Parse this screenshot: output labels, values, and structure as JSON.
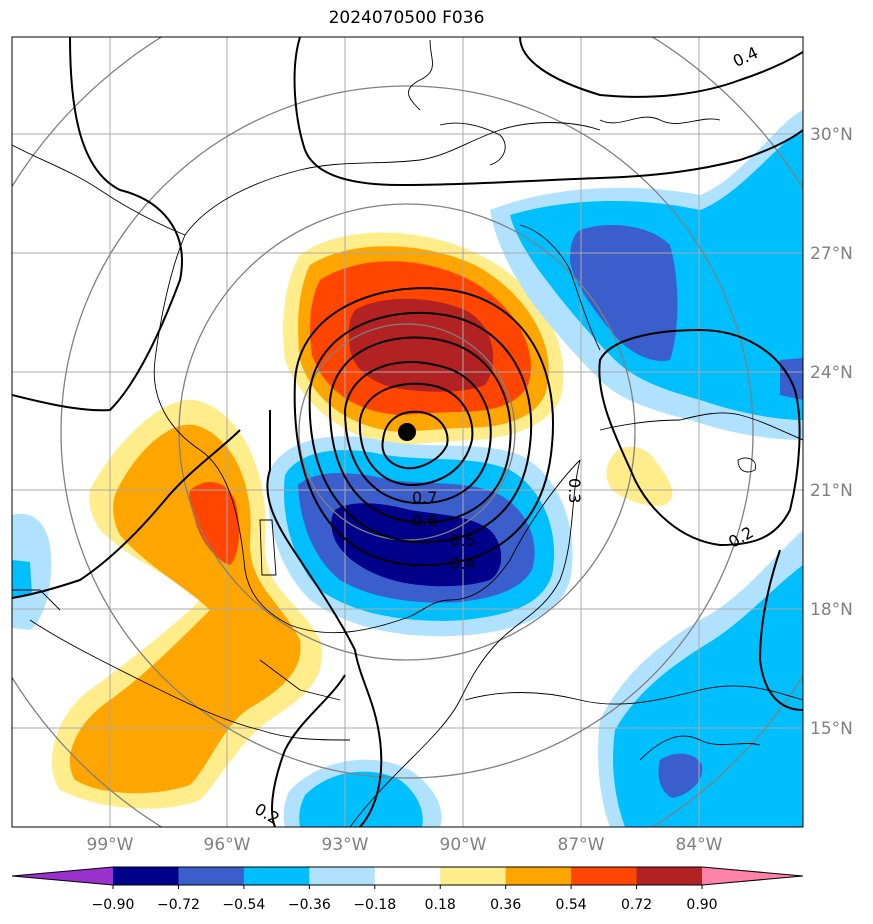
{
  "title": "2024070500 F036",
  "latitude_labels": [
    "30°N",
    "27°N",
    "24°N",
    "21°N",
    "18°N",
    "15°N"
  ],
  "longitude_labels": [
    "99°W",
    "96°W",
    "93°W",
    "90°W",
    "87°W",
    "84°W"
  ],
  "colorbar": {
    "levels": [
      "−0.90",
      "−0.72",
      "−0.54",
      "−0.36",
      "−0.18",
      "0.18",
      "0.36",
      "0.54",
      "0.72",
      "0.90"
    ],
    "colors": [
      "#9932cc",
      "#00008b",
      "#3a5fcd",
      "#00bfff",
      "#b0e2ff",
      "#ffffff",
      "#ffec8b",
      "#ffa500",
      "#ff4500",
      "#b22222",
      "#ff82ab"
    ]
  },
  "contour_labels": [
    "0.4",
    "0.7",
    "0.6",
    "0.5",
    "0.4",
    "0.3",
    "0.2",
    "0.2"
  ],
  "storm_center": "marker"
}
